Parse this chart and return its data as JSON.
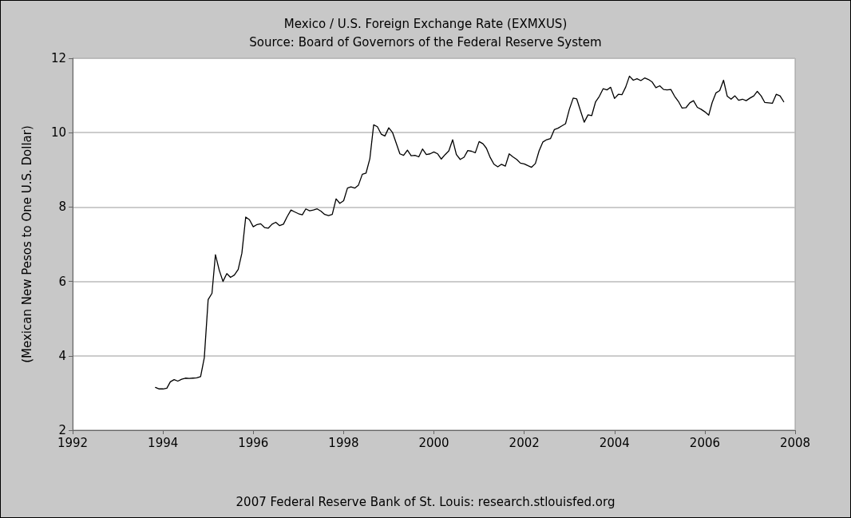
{
  "chart_data": {
    "type": "line",
    "title": "Mexico / U.S. Foreign Exchange Rate (EXMXUS)",
    "subtitle": "Source: Board of Governors of the Federal Reserve System",
    "ylabel": "(Mexican New Pesos to One U.S. Dollar)",
    "annotations": [
      "2007 Federal Reserve Bank of St. Louis: research.stlouisfed.org"
    ],
    "x": [
      "1993-11",
      "1993-12",
      "1994-01",
      "1994-02",
      "1994-03",
      "1994-04",
      "1994-05",
      "1994-06",
      "1994-07",
      "1994-08",
      "1994-09",
      "1994-10",
      "1994-11",
      "1994-12",
      "1995-01",
      "1995-02",
      "1995-03",
      "1995-04",
      "1995-05",
      "1995-06",
      "1995-07",
      "1995-08",
      "1995-09",
      "1995-10",
      "1995-11",
      "1995-12",
      "1996-01",
      "1996-02",
      "1996-03",
      "1996-04",
      "1996-05",
      "1996-06",
      "1996-07",
      "1996-08",
      "1996-09",
      "1996-10",
      "1996-11",
      "1996-12",
      "1997-01",
      "1997-02",
      "1997-03",
      "1997-04",
      "1997-05",
      "1997-06",
      "1997-07",
      "1997-08",
      "1997-09",
      "1997-10",
      "1997-11",
      "1997-12",
      "1998-01",
      "1998-02",
      "1998-03",
      "1998-04",
      "1998-05",
      "1998-06",
      "1998-07",
      "1998-08",
      "1998-09",
      "1998-10",
      "1998-11",
      "1998-12",
      "1999-01",
      "1999-02",
      "1999-03",
      "1999-04",
      "1999-05",
      "1999-06",
      "1999-07",
      "1999-08",
      "1999-09",
      "1999-10",
      "1999-11",
      "1999-12",
      "2000-01",
      "2000-02",
      "2000-03",
      "2000-04",
      "2000-05",
      "2000-06",
      "2000-07",
      "2000-08",
      "2000-09",
      "2000-10",
      "2000-11",
      "2000-12",
      "2001-01",
      "2001-02",
      "2001-03",
      "2001-04",
      "2001-05",
      "2001-06",
      "2001-07",
      "2001-08",
      "2001-09",
      "2001-10",
      "2001-11",
      "2001-12",
      "2002-01",
      "2002-02",
      "2002-03",
      "2002-04",
      "2002-05",
      "2002-06",
      "2002-07",
      "2002-08",
      "2002-09",
      "2002-10",
      "2002-11",
      "2002-12",
      "2003-01",
      "2003-02",
      "2003-03",
      "2003-04",
      "2003-05",
      "2003-06",
      "2003-07",
      "2003-08",
      "2003-09",
      "2003-10",
      "2003-11",
      "2003-12",
      "2004-01",
      "2004-02",
      "2004-03",
      "2004-04",
      "2004-05",
      "2004-06",
      "2004-07",
      "2004-08",
      "2004-09",
      "2004-10",
      "2004-11",
      "2004-12",
      "2005-01",
      "2005-02",
      "2005-03",
      "2005-04",
      "2005-05",
      "2005-06",
      "2005-07",
      "2005-08",
      "2005-09",
      "2005-10",
      "2005-11",
      "2005-12",
      "2006-01",
      "2006-02",
      "2006-03",
      "2006-04",
      "2006-05",
      "2006-06",
      "2006-07",
      "2006-08",
      "2006-09",
      "2006-10",
      "2006-11",
      "2006-12",
      "2007-01",
      "2007-02",
      "2007-03",
      "2007-04",
      "2007-05",
      "2007-06",
      "2007-07",
      "2007-08",
      "2007-09",
      "2007-10"
    ],
    "series": [
      {
        "color": "#000000",
        "values": [
          3.15,
          3.11,
          3.11,
          3.13,
          3.3,
          3.36,
          3.32,
          3.37,
          3.4,
          3.39,
          3.4,
          3.41,
          3.44,
          3.95,
          5.51,
          5.68,
          6.72,
          6.3,
          6.0,
          6.21,
          6.11,
          6.17,
          6.32,
          6.76,
          7.73,
          7.66,
          7.47,
          7.53,
          7.55,
          7.45,
          7.43,
          7.54,
          7.59,
          7.5,
          7.54,
          7.74,
          7.92,
          7.87,
          7.82,
          7.79,
          7.95,
          7.9,
          7.92,
          7.95,
          7.89,
          7.8,
          7.77,
          7.8,
          8.22,
          8.1,
          8.17,
          8.51,
          8.54,
          8.51,
          8.59,
          8.88,
          8.91,
          9.3,
          10.21,
          10.16,
          9.96,
          9.91,
          10.13,
          10.0,
          9.73,
          9.43,
          9.39,
          9.53,
          9.38,
          9.39,
          9.35,
          9.56,
          9.41,
          9.43,
          9.48,
          9.43,
          9.29,
          9.41,
          9.51,
          9.81,
          9.41,
          9.28,
          9.34,
          9.52,
          9.5,
          9.46,
          9.76,
          9.7,
          9.58,
          9.33,
          9.15,
          9.08,
          9.15,
          9.1,
          9.43,
          9.35,
          9.28,
          9.18,
          9.16,
          9.11,
          9.07,
          9.17,
          9.51,
          9.75,
          9.81,
          9.84,
          10.08,
          10.12,
          10.18,
          10.24,
          10.63,
          10.93,
          10.91,
          10.59,
          10.28,
          10.48,
          10.46,
          10.83,
          10.98,
          11.18,
          11.15,
          11.22,
          10.92,
          11.03,
          11.02,
          11.23,
          11.52,
          11.41,
          11.45,
          11.4,
          11.47,
          11.43,
          11.36,
          11.21,
          11.26,
          11.16,
          11.15,
          11.16,
          10.98,
          10.84,
          10.66,
          10.67,
          10.8,
          10.86,
          10.68,
          10.63,
          10.56,
          10.47,
          10.81,
          11.07,
          11.13,
          11.41,
          10.98,
          10.9,
          10.99,
          10.87,
          10.9,
          10.86,
          10.93,
          10.99,
          11.11,
          10.99,
          10.81,
          10.8,
          10.79,
          11.03,
          10.99,
          10.83
        ]
      }
    ],
    "xlim": [
      "1992",
      "2008"
    ],
    "xticks": [
      "1992",
      "1994",
      "1996",
      "1998",
      "2000",
      "2002",
      "2004",
      "2006",
      "2008"
    ],
    "ylim": [
      2,
      12
    ],
    "yticks": [
      2,
      4,
      6,
      8,
      10,
      12
    ],
    "grid": "y",
    "marker": "none",
    "line_style": "solid"
  }
}
